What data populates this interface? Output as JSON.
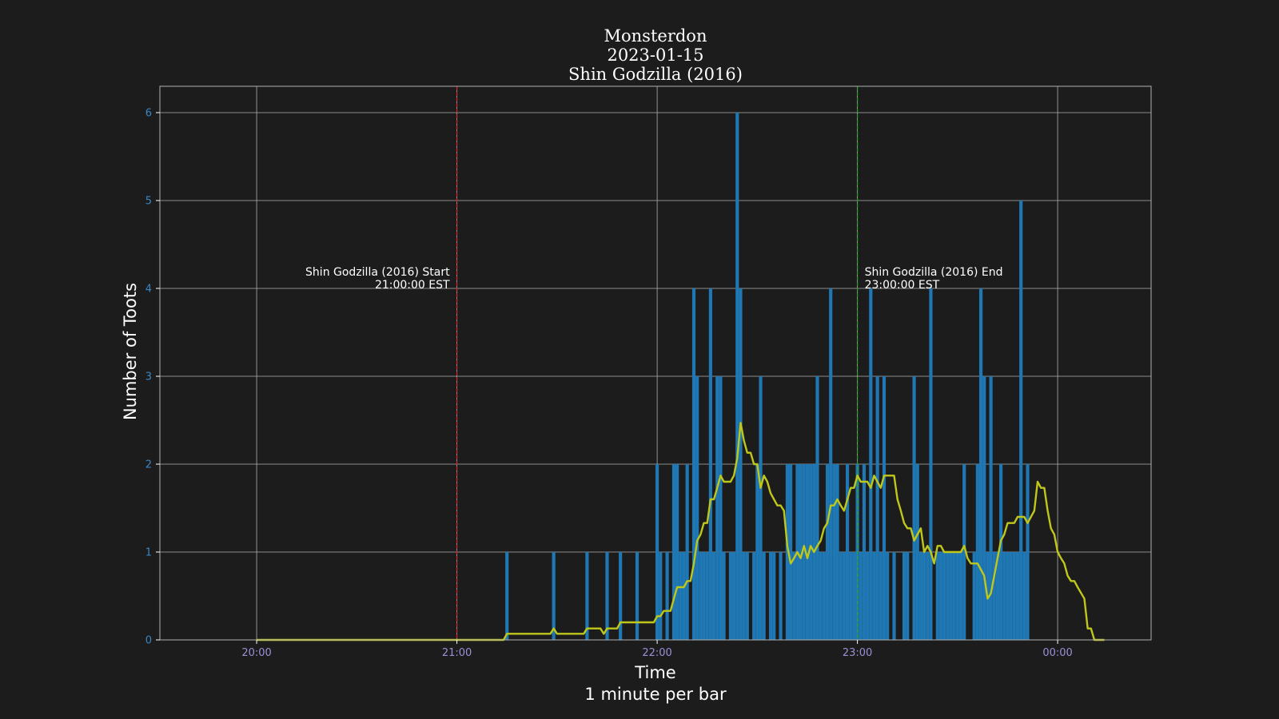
{
  "chart_data": {
    "type": "bar",
    "title": [
      "Monsterdon",
      "2023-01-15",
      "Shin Godzilla (2016)"
    ],
    "xlabel": "Time",
    "xlabel_sub": "1 minute per bar",
    "ylabel": "Number of Toots",
    "x_ticks": [
      "20:00",
      "21:00",
      "22:00",
      "23:00",
      "00:00"
    ],
    "y_ticks": [
      "0",
      "1",
      "2",
      "3",
      "4",
      "5",
      "6"
    ],
    "ylim": [
      0,
      6.3
    ],
    "xlim_minutes_after_20_00": [
      -29,
      268
    ],
    "grid": true,
    "colors": {
      "background": "#1c1c1c",
      "bars": "#1f77b4",
      "rolling_average": "#bfc81a",
      "start_line": "#d62728",
      "end_line": "#2ca02c",
      "grid": "#b0b0b0"
    },
    "annotations": [
      {
        "line1": "Shin Godzilla (2016) Start",
        "line2": "21:00:00 EST",
        "time": "21:00"
      },
      {
        "line1": "Shin Godzilla (2016) End",
        "line2": "23:00:00 EST",
        "time": "23:00"
      }
    ],
    "bars": [
      {
        "t": "21:15",
        "v": 1
      },
      {
        "t": "21:29",
        "v": 1
      },
      {
        "t": "21:39",
        "v": 1
      },
      {
        "t": "21:45",
        "v": 1
      },
      {
        "t": "21:49",
        "v": 1
      },
      {
        "t": "21:54",
        "v": 1
      },
      {
        "t": "22:00",
        "v": 2
      },
      {
        "t": "22:01",
        "v": 1
      },
      {
        "t": "22:03",
        "v": 1
      },
      {
        "t": "22:05",
        "v": 2
      },
      {
        "t": "22:06",
        "v": 2
      },
      {
        "t": "22:07",
        "v": 1
      },
      {
        "t": "22:08",
        "v": 1
      },
      {
        "t": "22:09",
        "v": 2
      },
      {
        "t": "22:11",
        "v": 4
      },
      {
        "t": "22:12",
        "v": 3
      },
      {
        "t": "22:13",
        "v": 1
      },
      {
        "t": "22:14",
        "v": 1
      },
      {
        "t": "22:15",
        "v": 1
      },
      {
        "t": "22:16",
        "v": 4
      },
      {
        "t": "22:17",
        "v": 1
      },
      {
        "t": "22:18",
        "v": 3
      },
      {
        "t": "22:19",
        "v": 3
      },
      {
        "t": "22:20",
        "v": 1
      },
      {
        "t": "22:22",
        "v": 1
      },
      {
        "t": "22:23",
        "v": 1
      },
      {
        "t": "22:24",
        "v": 6
      },
      {
        "t": "22:25",
        "v": 4
      },
      {
        "t": "22:26",
        "v": 1
      },
      {
        "t": "22:27",
        "v": 1
      },
      {
        "t": "22:29",
        "v": 1
      },
      {
        "t": "22:30",
        "v": 2
      },
      {
        "t": "22:31",
        "v": 3
      },
      {
        "t": "22:32",
        "v": 1
      },
      {
        "t": "22:34",
        "v": 1
      },
      {
        "t": "22:35",
        "v": 1
      },
      {
        "t": "22:37",
        "v": 1
      },
      {
        "t": "22:39",
        "v": 2
      },
      {
        "t": "22:40",
        "v": 2
      },
      {
        "t": "22:41",
        "v": 1
      },
      {
        "t": "22:42",
        "v": 2
      },
      {
        "t": "22:43",
        "v": 2
      },
      {
        "t": "22:44",
        "v": 2
      },
      {
        "t": "22:45",
        "v": 2
      },
      {
        "t": "22:46",
        "v": 2
      },
      {
        "t": "22:47",
        "v": 2
      },
      {
        "t": "22:48",
        "v": 3
      },
      {
        "t": "22:49",
        "v": 1
      },
      {
        "t": "22:50",
        "v": 1
      },
      {
        "t": "22:51",
        "v": 2
      },
      {
        "t": "22:52",
        "v": 4
      },
      {
        "t": "22:53",
        "v": 2
      },
      {
        "t": "22:54",
        "v": 2
      },
      {
        "t": "22:55",
        "v": 1
      },
      {
        "t": "22:56",
        "v": 1
      },
      {
        "t": "22:57",
        "v": 2
      },
      {
        "t": "22:58",
        "v": 1
      },
      {
        "t": "22:59",
        "v": 1
      },
      {
        "t": "23:00",
        "v": 2
      },
      {
        "t": "23:01",
        "v": 1
      },
      {
        "t": "23:02",
        "v": 2
      },
      {
        "t": "23:03",
        "v": 1
      },
      {
        "t": "23:04",
        "v": 4
      },
      {
        "t": "23:05",
        "v": 1
      },
      {
        "t": "23:06",
        "v": 3
      },
      {
        "t": "23:07",
        "v": 1
      },
      {
        "t": "23:08",
        "v": 3
      },
      {
        "t": "23:09",
        "v": 1
      },
      {
        "t": "23:11",
        "v": 1
      },
      {
        "t": "23:14",
        "v": 1
      },
      {
        "t": "23:15",
        "v": 1
      },
      {
        "t": "23:17",
        "v": 3
      },
      {
        "t": "23:18",
        "v": 2
      },
      {
        "t": "23:19",
        "v": 1
      },
      {
        "t": "23:20",
        "v": 1
      },
      {
        "t": "23:21",
        "v": 1
      },
      {
        "t": "23:22",
        "v": 4
      },
      {
        "t": "23:24",
        "v": 1
      },
      {
        "t": "23:25",
        "v": 1
      },
      {
        "t": "23:26",
        "v": 1
      },
      {
        "t": "23:27",
        "v": 1
      },
      {
        "t": "23:28",
        "v": 1
      },
      {
        "t": "23:29",
        "v": 1
      },
      {
        "t": "23:30",
        "v": 1
      },
      {
        "t": "23:31",
        "v": 1
      },
      {
        "t": "23:32",
        "v": 2
      },
      {
        "t": "23:35",
        "v": 1
      },
      {
        "t": "23:36",
        "v": 2
      },
      {
        "t": "23:37",
        "v": 4
      },
      {
        "t": "23:38",
        "v": 3
      },
      {
        "t": "23:39",
        "v": 1
      },
      {
        "t": "23:40",
        "v": 3
      },
      {
        "t": "23:41",
        "v": 1
      },
      {
        "t": "23:42",
        "v": 1
      },
      {
        "t": "23:43",
        "v": 2
      },
      {
        "t": "23:44",
        "v": 1
      },
      {
        "t": "23:45",
        "v": 1
      },
      {
        "t": "23:46",
        "v": 1
      },
      {
        "t": "23:47",
        "v": 1
      },
      {
        "t": "23:48",
        "v": 1
      },
      {
        "t": "23:49",
        "v": 5
      },
      {
        "t": "23:50",
        "v": 1
      },
      {
        "t": "23:51",
        "v": 2
      }
    ],
    "rolling_average": [
      {
        "t": "20:00",
        "v": 0
      },
      {
        "t": "21:14",
        "v": 0
      },
      {
        "t": "21:15",
        "v": 0.07
      },
      {
        "t": "21:28",
        "v": 0.07
      },
      {
        "t": "21:29",
        "v": 0.13
      },
      {
        "t": "21:30",
        "v": 0.07
      },
      {
        "t": "21:38",
        "v": 0.07
      },
      {
        "t": "21:39",
        "v": 0.13
      },
      {
        "t": "21:43",
        "v": 0.13
      },
      {
        "t": "21:44",
        "v": 0.07
      },
      {
        "t": "21:45",
        "v": 0.13
      },
      {
        "t": "21:48",
        "v": 0.13
      },
      {
        "t": "21:49",
        "v": 0.2
      },
      {
        "t": "21:59",
        "v": 0.2
      },
      {
        "t": "22:00",
        "v": 0.27
      },
      {
        "t": "22:01",
        "v": 0.27
      },
      {
        "t": "22:02",
        "v": 0.33
      },
      {
        "t": "22:04",
        "v": 0.33
      },
      {
        "t": "22:05",
        "v": 0.47
      },
      {
        "t": "22:06",
        "v": 0.6
      },
      {
        "t": "22:08",
        "v": 0.6
      },
      {
        "t": "22:09",
        "v": 0.67
      },
      {
        "t": "22:10",
        "v": 0.67
      },
      {
        "t": "22:11",
        "v": 0.87
      },
      {
        "t": "22:12",
        "v": 1.13
      },
      {
        "t": "22:13",
        "v": 1.2
      },
      {
        "t": "22:14",
        "v": 1.33
      },
      {
        "t": "22:15",
        "v": 1.33
      },
      {
        "t": "22:16",
        "v": 1.6
      },
      {
        "t": "22:17",
        "v": 1.6
      },
      {
        "t": "22:18",
        "v": 1.73
      },
      {
        "t": "22:19",
        "v": 1.87
      },
      {
        "t": "22:20",
        "v": 1.8
      },
      {
        "t": "22:21",
        "v": 1.8
      },
      {
        "t": "22:22",
        "v": 1.8
      },
      {
        "t": "22:23",
        "v": 1.87
      },
      {
        "t": "22:24",
        "v": 2.07
      },
      {
        "t": "22:25",
        "v": 2.47
      },
      {
        "t": "22:26",
        "v": 2.27
      },
      {
        "t": "22:27",
        "v": 2.13
      },
      {
        "t": "22:28",
        "v": 2.13
      },
      {
        "t": "22:29",
        "v": 2.0
      },
      {
        "t": "22:30",
        "v": 2.0
      },
      {
        "t": "22:31",
        "v": 1.73
      },
      {
        "t": "22:32",
        "v": 1.87
      },
      {
        "t": "22:33",
        "v": 1.8
      },
      {
        "t": "22:34",
        "v": 1.67
      },
      {
        "t": "22:35",
        "v": 1.6
      },
      {
        "t": "22:36",
        "v": 1.53
      },
      {
        "t": "22:37",
        "v": 1.53
      },
      {
        "t": "22:38",
        "v": 1.47
      },
      {
        "t": "22:39",
        "v": 1.07
      },
      {
        "t": "22:40",
        "v": 0.87
      },
      {
        "t": "22:41",
        "v": 0.93
      },
      {
        "t": "22:42",
        "v": 1.0
      },
      {
        "t": "22:43",
        "v": 0.93
      },
      {
        "t": "22:44",
        "v": 1.07
      },
      {
        "t": "22:45",
        "v": 0.93
      },
      {
        "t": "22:46",
        "v": 1.07
      },
      {
        "t": "22:47",
        "v": 1.0
      },
      {
        "t": "22:48",
        "v": 1.07
      },
      {
        "t": "22:49",
        "v": 1.13
      },
      {
        "t": "22:50",
        "v": 1.27
      },
      {
        "t": "22:51",
        "v": 1.33
      },
      {
        "t": "22:52",
        "v": 1.53
      },
      {
        "t": "22:53",
        "v": 1.53
      },
      {
        "t": "22:54",
        "v": 1.6
      },
      {
        "t": "22:55",
        "v": 1.53
      },
      {
        "t": "22:56",
        "v": 1.47
      },
      {
        "t": "22:57",
        "v": 1.6
      },
      {
        "t": "22:58",
        "v": 1.73
      },
      {
        "t": "22:59",
        "v": 1.73
      },
      {
        "t": "23:00",
        "v": 1.87
      },
      {
        "t": "23:01",
        "v": 1.8
      },
      {
        "t": "23:02",
        "v": 1.8
      },
      {
        "t": "23:03",
        "v": 1.8
      },
      {
        "t": "23:04",
        "v": 1.73
      },
      {
        "t": "23:05",
        "v": 1.87
      },
      {
        "t": "23:06",
        "v": 1.8
      },
      {
        "t": "23:07",
        "v": 1.73
      },
      {
        "t": "23:08",
        "v": 1.87
      },
      {
        "t": "23:11",
        "v": 1.87
      },
      {
        "t": "23:12",
        "v": 1.6
      },
      {
        "t": "23:13",
        "v": 1.47
      },
      {
        "t": "23:14",
        "v": 1.33
      },
      {
        "t": "23:15",
        "v": 1.27
      },
      {
        "t": "23:16",
        "v": 1.27
      },
      {
        "t": "23:17",
        "v": 1.13
      },
      {
        "t": "23:18",
        "v": 1.2
      },
      {
        "t": "23:19",
        "v": 1.27
      },
      {
        "t": "23:20",
        "v": 1.0
      },
      {
        "t": "23:21",
        "v": 1.07
      },
      {
        "t": "23:22",
        "v": 1.0
      },
      {
        "t": "23:23",
        "v": 0.87
      },
      {
        "t": "23:24",
        "v": 1.07
      },
      {
        "t": "23:25",
        "v": 1.07
      },
      {
        "t": "23:26",
        "v": 1.0
      },
      {
        "t": "23:31",
        "v": 1.0
      },
      {
        "t": "23:32",
        "v": 1.07
      },
      {
        "t": "23:33",
        "v": 0.93
      },
      {
        "t": "23:34",
        "v": 0.87
      },
      {
        "t": "23:36",
        "v": 0.87
      },
      {
        "t": "23:37",
        "v": 0.8
      },
      {
        "t": "23:38",
        "v": 0.73
      },
      {
        "t": "23:39",
        "v": 0.47
      },
      {
        "t": "23:40",
        "v": 0.53
      },
      {
        "t": "23:41",
        "v": 0.73
      },
      {
        "t": "23:42",
        "v": 0.93
      },
      {
        "t": "23:43",
        "v": 1.13
      },
      {
        "t": "23:44",
        "v": 1.2
      },
      {
        "t": "23:45",
        "v": 1.33
      },
      {
        "t": "23:47",
        "v": 1.33
      },
      {
        "t": "23:48",
        "v": 1.4
      },
      {
        "t": "23:50",
        "v": 1.4
      },
      {
        "t": "23:51",
        "v": 1.33
      },
      {
        "t": "23:52",
        "v": 1.4
      },
      {
        "t": "23:53",
        "v": 1.47
      },
      {
        "t": "23:54",
        "v": 1.8
      },
      {
        "t": "23:55",
        "v": 1.73
      },
      {
        "t": "23:56",
        "v": 1.73
      },
      {
        "t": "23:57",
        "v": 1.47
      },
      {
        "t": "23:58",
        "v": 1.27
      },
      {
        "t": "23:59",
        "v": 1.2
      },
      {
        "t": "00:00",
        "v": 1.0
      },
      {
        "t": "00:01",
        "v": 0.93
      },
      {
        "t": "00:02",
        "v": 0.87
      },
      {
        "t": "00:03",
        "v": 0.73
      },
      {
        "t": "00:04",
        "v": 0.67
      },
      {
        "t": "00:05",
        "v": 0.67
      },
      {
        "t": "00:06",
        "v": 0.6
      },
      {
        "t": "00:08",
        "v": 0.47
      },
      {
        "t": "00:09",
        "v": 0.13
      },
      {
        "t": "00:10",
        "v": 0.13
      },
      {
        "t": "00:11",
        "v": 0
      },
      {
        "t": "00:14",
        "v": 0
      }
    ]
  }
}
